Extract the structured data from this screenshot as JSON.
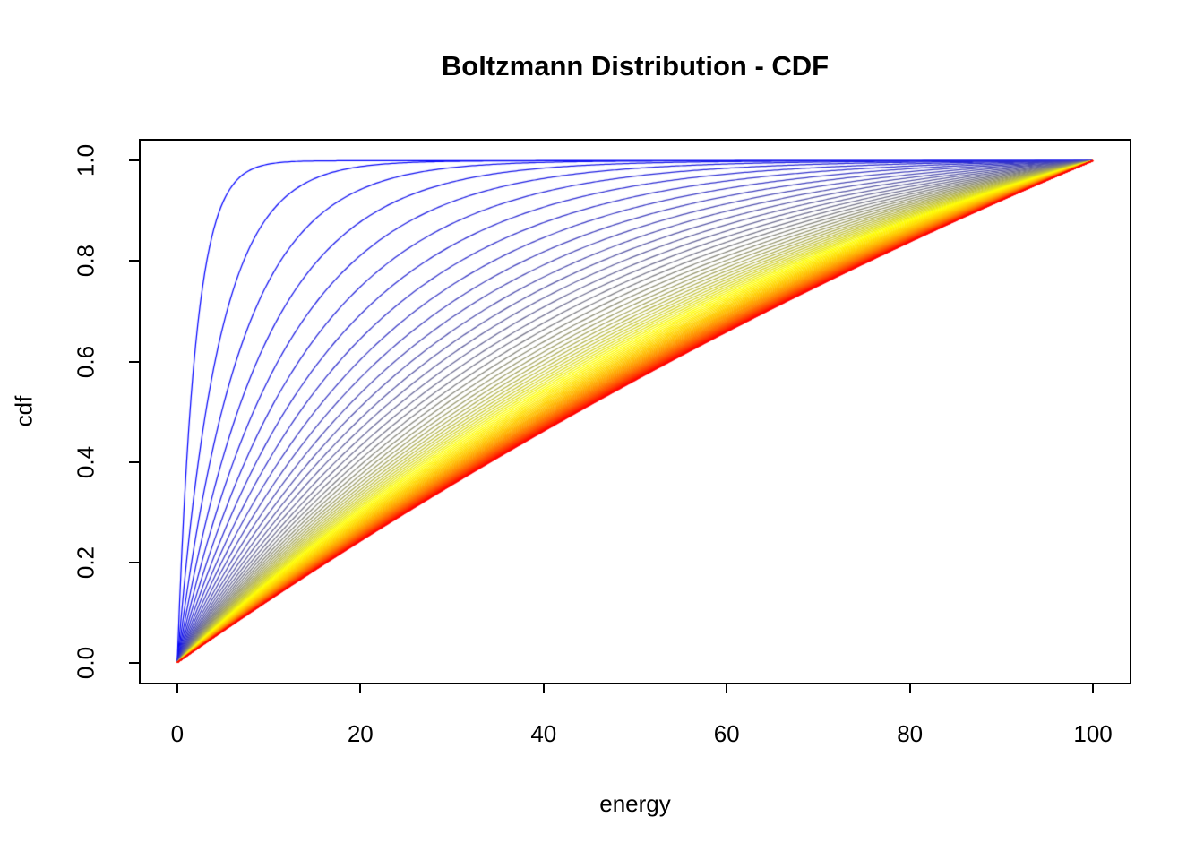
{
  "figure": {
    "background_color": "#FFFFFF",
    "axis_color": "#000000",
    "text_color": "#000000"
  },
  "chart_data": {
    "type": "line",
    "title": "Boltzmann Distribution - CDF",
    "xlabel": "energy",
    "ylabel": "cdf",
    "xlim": [
      0,
      100
    ],
    "ylim": [
      0.0,
      1.0
    ],
    "axis_padding_frac": 0.04,
    "grid": false,
    "legend": "none",
    "x_ticks": {
      "values": [
        0,
        20,
        40,
        60,
        80,
        100
      ],
      "labels": [
        "0",
        "20",
        "40",
        "60",
        "80",
        "100"
      ]
    },
    "y_ticks": {
      "values": [
        0,
        0.2,
        0.4,
        0.6,
        0.8,
        1.0
      ],
      "labels": [
        "0.0",
        "0.2",
        "0.4",
        "0.6",
        "0.8",
        "1.0"
      ]
    },
    "series_family": {
      "description": "Cumulative distribution function of the Boltzmann (truncated exponential) energy distribution for energies 0-100; one curve per temperature. Low temperatures rise steeply toward cdf=1 (blue curves), high temperatures approach the straight diagonal (red curve). All curves pass through (0,0) and (100,1).",
      "formula": "cdf(E; T) = (1 - exp(-E/T)) / (1 - exp(-E_max/T))",
      "E_min": 0,
      "E_max": 100,
      "E_step": 0.25,
      "temperatures": [
        2,
        4.5,
        7,
        9.5,
        12,
        14.5,
        17,
        19.5,
        22,
        24.5,
        27,
        29.5,
        32,
        34.5,
        37,
        39.5,
        42,
        44.5,
        47,
        49.5,
        52,
        54.5,
        57,
        59.5,
        62,
        64.5,
        67,
        69.5,
        72,
        74.5,
        77,
        79.5,
        82,
        84.5,
        87,
        89.5,
        92,
        94.5,
        97,
        99.5,
        102,
        104.5,
        107,
        109.5,
        112,
        114.5,
        117,
        119.5,
        122,
        124.5,
        127,
        129.5,
        132,
        134.5,
        137,
        139.5,
        142,
        144.5,
        147,
        149.5,
        152,
        154.5,
        157,
        159.5,
        162,
        164.5,
        167,
        169.5,
        172,
        174.5,
        177,
        179.5,
        182,
        184.5,
        187,
        189.5,
        192,
        194.5,
        197,
        199.5
      ],
      "color_gradient_stops": [
        {
          "pos": 0.0,
          "color": "#0000FF"
        },
        {
          "pos": 0.22,
          "color": "#808080"
        },
        {
          "pos": 0.42,
          "color": "#FFFF00"
        },
        {
          "pos": 1.0,
          "color": "#FF0000"
        }
      ],
      "line_width": 1.25
    }
  }
}
